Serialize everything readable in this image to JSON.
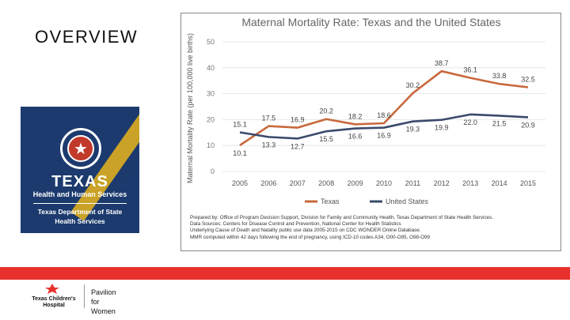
{
  "slide": {
    "title": "OVERVIEW"
  },
  "logo": {
    "word": "TEXAS",
    "subtitle": "Health and Human Services",
    "dept_line1": "Texas Department of State",
    "dept_line2": "Health Services",
    "colors": {
      "navy": "#1c3a6e",
      "gold": "#c9a227",
      "red": "#c0392b"
    }
  },
  "chart_data": {
    "type": "line",
    "title": "Maternal Mortality Rate: Texas and the United States",
    "ylabel": "Maternal Mortality Rate (per 100,000 live births)",
    "xlabel": "",
    "ylim": [
      0,
      50
    ],
    "yticks": [
      0,
      10,
      20,
      30,
      40,
      50
    ],
    "categories": [
      "2005",
      "2006",
      "2007",
      "2008",
      "2009",
      "2010",
      "2011",
      "2012",
      "2013",
      "2014",
      "2015"
    ],
    "series": [
      {
        "name": "Texas",
        "color": "#c8693c",
        "values": [
          10.1,
          17.5,
          16.9,
          20.2,
          18.2,
          18.6,
          30.2,
          38.7,
          36.1,
          33.8,
          32.5
        ],
        "labels": [
          "10.1",
          "17.5",
          "16.9",
          "20.2",
          "18.2",
          "18.6",
          "30.2",
          "38.7",
          "36.1",
          "33.8",
          "32.5"
        ]
      },
      {
        "name": "United States",
        "color": "#3b4a6b",
        "values": [
          15.1,
          13.3,
          12.7,
          15.5,
          16.6,
          16.9,
          19.3,
          19.9,
          22.0,
          21.5,
          20.9
        ],
        "labels": [
          "15.1",
          "13.3",
          "12.7",
          "15.5",
          "16.6",
          "16.9",
          "19.3",
          "19.9",
          "22.0",
          "21.5",
          "20.9"
        ]
      }
    ],
    "legend_position": "bottom-center"
  },
  "notes": {
    "line1": "Prepared by: Office of Program Decision Support, Division for Family and Community Health, Texas Department of State Health Services.",
    "line2": "Data Sources: Centers for Disease Control and Prevention, National Center for Health Statistics",
    "line3": "Underlying Cause of Death and Natality public use data 2005-2015 on CDC WONDER Online Database.",
    "line4": "MMR computed within 42 days following the end of pregnancy, using ICD-10 codes A34, O00-O95, O98-O99"
  },
  "footer": {
    "hospital_line1": "Texas Children's",
    "hospital_line2": "Hospital",
    "pavilion_line1": "Pavilion",
    "pavilion_line2": "for Women",
    "accent": "#e8312c"
  }
}
